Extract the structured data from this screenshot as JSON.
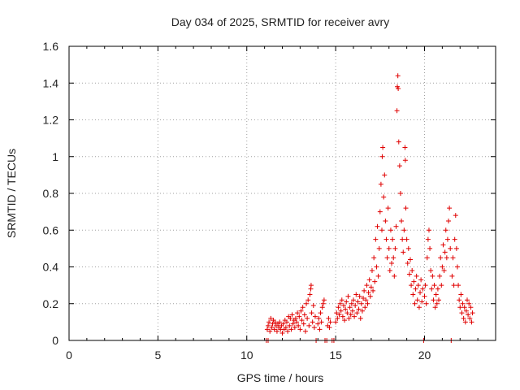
{
  "chart_data": {
    "type": "scatter",
    "title": "Day 034 of 2025, SRMTID for receiver avry",
    "xlabel": "GPS time / hours",
    "ylabel": "SRMTID / TECUs",
    "xlim": [
      0,
      24
    ],
    "ylim": [
      0,
      1.6
    ],
    "xticks": [
      0,
      5,
      10,
      15,
      20
    ],
    "yticks": [
      0,
      0.2,
      0.4,
      0.6,
      0.8,
      1,
      1.2,
      1.4,
      1.6
    ],
    "xtick_labels": [
      "0",
      "5",
      "10",
      "15",
      "20"
    ],
    "ytick_labels": [
      "0",
      "0.2",
      "0.4",
      "0.6",
      "0.8",
      "1",
      "1.2",
      "1.4",
      "1.6"
    ],
    "grid": true,
    "marker": "plus",
    "color": "#e00000",
    "series": [
      {
        "name": "SRMTID",
        "points": [
          [
            11.1,
            0.0
          ],
          [
            11.2,
            0.0
          ],
          [
            11.15,
            0.06
          ],
          [
            11.2,
            0.08
          ],
          [
            11.25,
            0.1
          ],
          [
            11.3,
            0.05
          ],
          [
            11.35,
            0.12
          ],
          [
            11.4,
            0.07
          ],
          [
            11.45,
            0.09
          ],
          [
            11.5,
            0.11
          ],
          [
            11.55,
            0.06
          ],
          [
            11.6,
            0.1
          ],
          [
            11.65,
            0.08
          ],
          [
            11.7,
            0.05
          ],
          [
            11.75,
            0.09
          ],
          [
            11.8,
            0.07
          ],
          [
            11.85,
            0.1
          ],
          [
            11.9,
            0.06
          ],
          [
            11.95,
            0.08
          ],
          [
            12.0,
            0.04
          ],
          [
            12.05,
            0.09
          ],
          [
            12.1,
            0.06
          ],
          [
            12.15,
            0.11
          ],
          [
            12.2,
            0.07
          ],
          [
            12.25,
            0.1
          ],
          [
            12.3,
            0.05
          ],
          [
            12.35,
            0.13
          ],
          [
            12.4,
            0.08
          ],
          [
            12.45,
            0.12
          ],
          [
            12.5,
            0.06
          ],
          [
            12.55,
            0.14
          ],
          [
            12.6,
            0.09
          ],
          [
            12.65,
            0.11
          ],
          [
            12.7,
            0.07
          ],
          [
            12.75,
            0.12
          ],
          [
            12.8,
            0.1
          ],
          [
            12.85,
            0.15
          ],
          [
            12.9,
            0.08
          ],
          [
            12.95,
            0.13
          ],
          [
            13.0,
            0.06
          ],
          [
            13.05,
            0.16
          ],
          [
            13.1,
            0.11
          ],
          [
            13.15,
            0.18
          ],
          [
            13.2,
            0.09
          ],
          [
            13.25,
            0.14
          ],
          [
            13.3,
            0.05
          ],
          [
            13.35,
            0.2
          ],
          [
            13.4,
            0.12
          ],
          [
            13.45,
            0.22
          ],
          [
            13.5,
            0.08
          ],
          [
            13.55,
            0.25
          ],
          [
            13.6,
            0.28
          ],
          [
            13.62,
            0.3
          ],
          [
            13.65,
            0.15
          ],
          [
            13.7,
            0.1
          ],
          [
            13.75,
            0.19
          ],
          [
            13.8,
            0.07
          ],
          [
            13.85,
            0.13
          ],
          [
            13.9,
            0.0
          ],
          [
            14.0,
            0.09
          ],
          [
            14.05,
            0.12
          ],
          [
            14.1,
            0.06
          ],
          [
            14.15,
            0.15
          ],
          [
            14.2,
            0.1
          ],
          [
            14.25,
            0.18
          ],
          [
            14.3,
            0.2
          ],
          [
            14.35,
            0.22
          ],
          [
            14.4,
            0.0
          ],
          [
            14.5,
            0.0
          ],
          [
            14.55,
            0.08
          ],
          [
            14.6,
            0.12
          ],
          [
            14.65,
            0.07
          ],
          [
            14.7,
            0.1
          ],
          [
            14.8,
            0.0
          ],
          [
            14.9,
            0.0
          ],
          [
            15.0,
            0.1
          ],
          [
            15.05,
            0.15
          ],
          [
            15.1,
            0.12
          ],
          [
            15.15,
            0.18
          ],
          [
            15.2,
            0.14
          ],
          [
            15.25,
            0.2
          ],
          [
            15.3,
            0.16
          ],
          [
            15.35,
            0.22
          ],
          [
            15.4,
            0.13
          ],
          [
            15.45,
            0.19
          ],
          [
            15.5,
            0.11
          ],
          [
            15.55,
            0.17
          ],
          [
            15.6,
            0.21
          ],
          [
            15.65,
            0.15
          ],
          [
            15.7,
            0.24
          ],
          [
            15.75,
            0.12
          ],
          [
            15.8,
            0.18
          ],
          [
            15.85,
            0.14
          ],
          [
            15.9,
            0.2
          ],
          [
            15.95,
            0.16
          ],
          [
            16.0,
            0.22
          ],
          [
            16.05,
            0.13
          ],
          [
            16.1,
            0.19
          ],
          [
            16.15,
            0.25
          ],
          [
            16.2,
            0.15
          ],
          [
            16.25,
            0.21
          ],
          [
            16.3,
            0.17
          ],
          [
            16.35,
            0.24
          ],
          [
            16.4,
            0.12
          ],
          [
            16.45,
            0.2
          ],
          [
            16.5,
            0.16
          ],
          [
            16.55,
            0.23
          ],
          [
            16.6,
            0.27
          ],
          [
            16.65,
            0.18
          ],
          [
            16.7,
            0.22
          ],
          [
            16.75,
            0.3
          ],
          [
            16.8,
            0.2
          ],
          [
            16.85,
            0.26
          ],
          [
            16.9,
            0.33
          ],
          [
            16.95,
            0.24
          ],
          [
            17.0,
            0.29
          ],
          [
            17.05,
            0.38
          ],
          [
            17.1,
            0.27
          ],
          [
            17.15,
            0.45
          ],
          [
            17.2,
            0.32
          ],
          [
            17.25,
            0.55
          ],
          [
            17.3,
            0.4
          ],
          [
            17.35,
            0.62
          ],
          [
            17.4,
            0.35
          ],
          [
            17.45,
            0.5
          ],
          [
            17.5,
            0.7
          ],
          [
            17.55,
            0.85
          ],
          [
            17.6,
            0.6
          ],
          [
            17.62,
            1.0
          ],
          [
            17.65,
            1.05
          ],
          [
            17.7,
            0.78
          ],
          [
            17.75,
            0.9
          ],
          [
            17.8,
            0.65
          ],
          [
            17.85,
            0.55
          ],
          [
            17.9,
            0.45
          ],
          [
            17.95,
            0.72
          ],
          [
            18.0,
            0.5
          ],
          [
            18.05,
            0.38
          ],
          [
            18.1,
            0.6
          ],
          [
            18.15,
            0.42
          ],
          [
            18.2,
            0.55
          ],
          [
            18.25,
            0.45
          ],
          [
            18.3,
            0.35
          ],
          [
            18.35,
            0.5
          ],
          [
            18.4,
            0.62
          ],
          [
            18.45,
            1.25
          ],
          [
            18.47,
            1.38
          ],
          [
            18.5,
            1.44
          ],
          [
            18.52,
            1.37
          ],
          [
            18.55,
            1.08
          ],
          [
            18.6,
            0.95
          ],
          [
            18.65,
            0.8
          ],
          [
            18.7,
            0.65
          ],
          [
            18.75,
            0.55
          ],
          [
            18.8,
            0.48
          ],
          [
            18.85,
            0.6
          ],
          [
            18.9,
            1.05
          ],
          [
            18.92,
            0.98
          ],
          [
            18.95,
            0.72
          ],
          [
            19.0,
            0.55
          ],
          [
            19.05,
            0.42
          ],
          [
            19.1,
            0.5
          ],
          [
            19.15,
            0.36
          ],
          [
            19.2,
            0.44
          ],
          [
            19.25,
            0.3
          ],
          [
            19.3,
            0.38
          ],
          [
            19.35,
            0.25
          ],
          [
            19.4,
            0.32
          ],
          [
            19.45,
            0.2
          ],
          [
            19.5,
            0.28
          ],
          [
            19.55,
            0.35
          ],
          [
            19.6,
            0.22
          ],
          [
            19.65,
            0.3
          ],
          [
            19.7,
            0.18
          ],
          [
            19.75,
            0.26
          ],
          [
            19.8,
            0.33
          ],
          [
            19.85,
            0.21
          ],
          [
            19.9,
            0.28
          ],
          [
            19.95,
            0.0
          ],
          [
            20.0,
            0.24
          ],
          [
            20.05,
            0.3
          ],
          [
            20.1,
            0.2
          ],
          [
            20.15,
            0.45
          ],
          [
            20.2,
            0.55
          ],
          [
            20.25,
            0.6
          ],
          [
            20.3,
            0.5
          ],
          [
            20.35,
            0.38
          ],
          [
            20.4,
            0.28
          ],
          [
            20.45,
            0.35
          ],
          [
            20.5,
            0.22
          ],
          [
            20.55,
            0.3
          ],
          [
            20.6,
            0.18
          ],
          [
            20.65,
            0.25
          ],
          [
            20.7,
            0.2
          ],
          [
            20.75,
            0.28
          ],
          [
            20.8,
            0.22
          ],
          [
            20.85,
            0.35
          ],
          [
            20.9,
            0.45
          ],
          [
            20.95,
            0.3
          ],
          [
            21.0,
            0.4
          ],
          [
            21.05,
            0.52
          ],
          [
            21.1,
            0.38
          ],
          [
            21.15,
            0.48
          ],
          [
            21.2,
            0.6
          ],
          [
            21.25,
            0.45
          ],
          [
            21.3,
            0.55
          ],
          [
            21.35,
            0.65
          ],
          [
            21.4,
            0.72
          ],
          [
            21.45,
            0.5
          ],
          [
            21.5,
            0.0
          ],
          [
            21.55,
            0.35
          ],
          [
            21.6,
            0.45
          ],
          [
            21.65,
            0.3
          ],
          [
            21.7,
            0.55
          ],
          [
            21.75,
            0.68
          ],
          [
            21.8,
            0.5
          ],
          [
            21.85,
            0.4
          ],
          [
            21.9,
            0.3
          ],
          [
            21.95,
            0.22
          ],
          [
            22.0,
            0.18
          ],
          [
            22.05,
            0.25
          ],
          [
            22.1,
            0.15
          ],
          [
            22.15,
            0.2
          ],
          [
            22.2,
            0.12
          ],
          [
            22.25,
            0.18
          ],
          [
            22.3,
            0.1
          ],
          [
            22.35,
            0.16
          ],
          [
            22.4,
            0.22
          ],
          [
            22.45,
            0.14
          ],
          [
            22.5,
            0.2
          ],
          [
            22.55,
            0.12
          ],
          [
            22.6,
            0.18
          ],
          [
            22.65,
            0.1
          ],
          [
            22.7,
            0.15
          ]
        ]
      }
    ]
  }
}
